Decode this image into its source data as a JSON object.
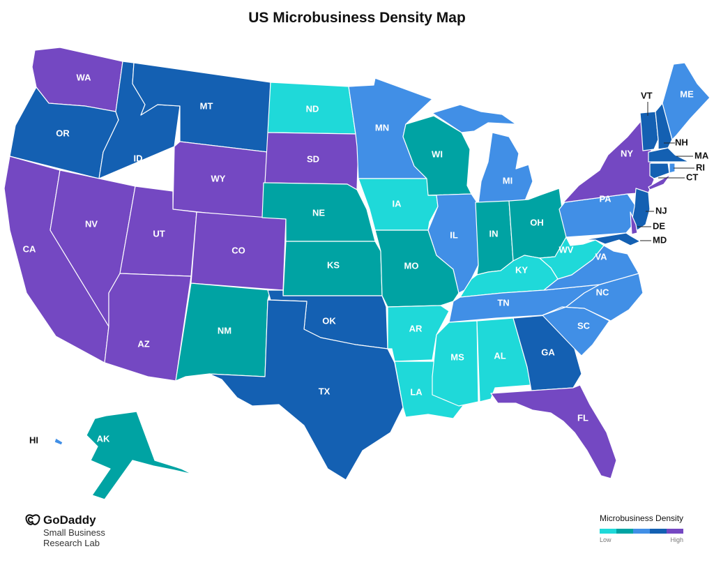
{
  "title": "US Microbusiness Density Map",
  "legend": {
    "title": "Microbusiness Density",
    "low_label": "Low",
    "high_label": "High",
    "colors": [
      "#1fd9d9",
      "#00a3a3",
      "#418fe6",
      "#1460b2",
      "#7448c2"
    ]
  },
  "brand": {
    "name": "GoDaddy",
    "line1": "Small Business",
    "line2": "Research Lab"
  },
  "levels": {
    "1": "#1fd9d9",
    "2": "#00a3a3",
    "3": "#418fe6",
    "4": "#1460b2",
    "5": "#7448c2"
  },
  "states": {
    "WA": {
      "label": "WA",
      "level": 5
    },
    "OR": {
      "label": "OR",
      "level": 4
    },
    "CA": {
      "label": "CA",
      "level": 5
    },
    "ID": {
      "label": "ID",
      "level": 4
    },
    "NV": {
      "label": "NV",
      "level": 5
    },
    "MT": {
      "label": "MT",
      "level": 4
    },
    "WY": {
      "label": "WY",
      "level": 5
    },
    "UT": {
      "label": "UT",
      "level": 5
    },
    "AZ": {
      "label": "AZ",
      "level": 5
    },
    "CO": {
      "label": "CO",
      "level": 5
    },
    "NM": {
      "label": "NM",
      "level": 2
    },
    "ND": {
      "label": "ND",
      "level": 1
    },
    "SD": {
      "label": "SD",
      "level": 5
    },
    "NE": {
      "label": "NE",
      "level": 2
    },
    "KS": {
      "label": "KS",
      "level": 2
    },
    "OK": {
      "label": "OK",
      "level": 4
    },
    "TX": {
      "label": "TX",
      "level": 4
    },
    "MN": {
      "label": "MN",
      "level": 3
    },
    "IA": {
      "label": "IA",
      "level": 1
    },
    "MO": {
      "label": "MO",
      "level": 2
    },
    "AR": {
      "label": "AR",
      "level": 1
    },
    "LA": {
      "label": "LA",
      "level": 1
    },
    "WI": {
      "label": "WI",
      "level": 2
    },
    "IL": {
      "label": "IL",
      "level": 3
    },
    "MI": {
      "label": "MI",
      "level": 3
    },
    "IN": {
      "label": "IN",
      "level": 2
    },
    "OH": {
      "label": "OH",
      "level": 2
    },
    "KY": {
      "label": "KY",
      "level": 1
    },
    "TN": {
      "label": "TN",
      "level": 3
    },
    "MS": {
      "label": "MS",
      "level": 1
    },
    "AL": {
      "label": "AL",
      "level": 1
    },
    "GA": {
      "label": "GA",
      "level": 4
    },
    "FL": {
      "label": "FL",
      "level": 5
    },
    "SC": {
      "label": "SC",
      "level": 3
    },
    "NC": {
      "label": "NC",
      "level": 3
    },
    "VA": {
      "label": "VA",
      "level": 3
    },
    "WV": {
      "label": "WV",
      "level": 1
    },
    "PA": {
      "label": "PA",
      "level": 3
    },
    "NY": {
      "label": "NY",
      "level": 5
    },
    "NJ": {
      "label": "NJ",
      "level": 4
    },
    "DE": {
      "label": "DE",
      "level": 5
    },
    "MD": {
      "label": "MD",
      "level": 4
    },
    "CT": {
      "label": "CT",
      "level": 4
    },
    "RI": {
      "label": "RI",
      "level": 3
    },
    "MA": {
      "label": "MA",
      "level": 4
    },
    "VT": {
      "label": "VT",
      "level": 4
    },
    "NH": {
      "label": "NH",
      "level": 4
    },
    "ME": {
      "label": "ME",
      "level": 3
    },
    "AK": {
      "label": "AK",
      "level": 2
    },
    "HI": {
      "label": "HI",
      "level": 3
    }
  }
}
